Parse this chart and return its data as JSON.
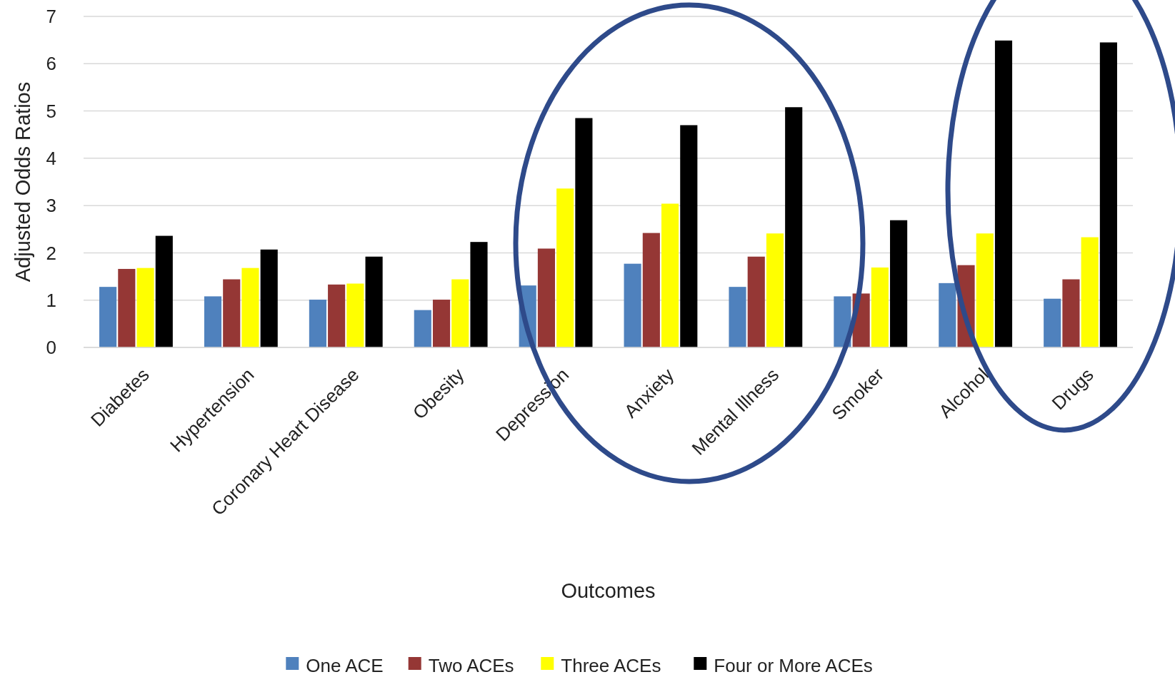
{
  "chart_data": {
    "type": "bar",
    "xlabel": "Outcomes",
    "ylabel": "Adjusted Odds Ratios",
    "categories": [
      "Diabetes",
      "Hypertension",
      "Coronary Heart Disease",
      "Obesity",
      "Depression",
      "Anxiety",
      "Mental Illness",
      "Smoker",
      "Alcohol",
      "Drugs"
    ],
    "series": [
      {
        "name": "One ACE",
        "color": "#4f81bd",
        "values": [
          1.28,
          1.08,
          1.01,
          0.79,
          1.31,
          1.77,
          1.28,
          1.08,
          1.36,
          1.03
        ]
      },
      {
        "name": "Two ACEs",
        "color": "#953735",
        "values": [
          1.66,
          1.44,
          1.33,
          1.01,
          2.09,
          2.42,
          1.92,
          1.14,
          1.74,
          1.44
        ]
      },
      {
        "name": "Three ACEs",
        "color": "#ffff00",
        "values": [
          1.68,
          1.68,
          1.35,
          1.44,
          3.36,
          3.04,
          2.41,
          1.69,
          2.41,
          2.33
        ]
      },
      {
        "name": "Four or More ACEs",
        "color": "#000000",
        "values": [
          2.36,
          2.07,
          1.92,
          2.23,
          4.85,
          4.7,
          5.08,
          2.69,
          6.49,
          6.45
        ]
      }
    ],
    "ylim": [
      0,
      7
    ],
    "yticks": [
      0,
      1,
      2,
      3,
      4,
      5,
      6,
      7
    ],
    "grid": "y",
    "legend": "bottom"
  }
}
